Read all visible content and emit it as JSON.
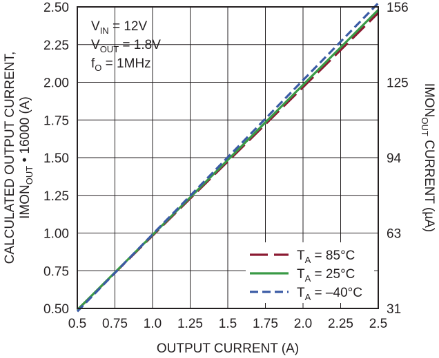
{
  "chart_data": {
    "type": "line",
    "x": [
      0.5,
      2.5
    ],
    "xlim": [
      0.5,
      2.5
    ],
    "ylim": [
      0.5,
      2.5
    ],
    "xticks": [
      "0.5",
      "0.75",
      "1.0",
      "1.25",
      "1.5",
      "1.75",
      "2.0",
      "2.25",
      "2.5"
    ],
    "yticks": [
      "0.50",
      "0.75",
      "1.00",
      "1.25",
      "1.50",
      "1.75",
      "2.00",
      "2.25",
      "2.50"
    ],
    "y2ticks": [
      "31",
      "63",
      "94",
      "125",
      "156"
    ],
    "y2_ticks_at_y": [
      0.5,
      1.0,
      1.5,
      2.0,
      2.5
    ],
    "grid": true,
    "xlabel": "OUTPUT CURRENT (A)",
    "ylabel": {
      "line1": "CALCULATED OUTPUT CURRENT,",
      "line2_main": "IMON",
      "line2_sub": "OUT",
      "line2_rest": " • 16000 (A)"
    },
    "y2label": {
      "main": "IMON",
      "sub": "OUT",
      "rest": " CURRENT (µA)"
    },
    "annotation": [
      {
        "main": "V",
        "sub": "IN",
        "rest": " = 12V"
      },
      {
        "main": "V",
        "sub": "OUT",
        "rest": " = 1.8V"
      },
      {
        "main": "f",
        "sub": "O",
        "rest": " = 1MHz"
      }
    ],
    "legend_position": "bottom-right",
    "series": [
      {
        "name_main": "T",
        "name_sub": "A",
        "name_rest": " = 85°C",
        "values": [
          0.49,
          2.46
        ],
        "color": "#8b1a32",
        "dash": "long-dash"
      },
      {
        "name_main": "T",
        "name_sub": "A",
        "name_rest": " = 25°C",
        "values": [
          0.49,
          2.48
        ],
        "color": "#3a9a46",
        "dash": "solid"
      },
      {
        "name_main": "T",
        "name_sub": "A",
        "name_rest": " = –40°C",
        "values": [
          0.48,
          2.525
        ],
        "color": "#3b5ba5",
        "dash": "short-dash"
      }
    ]
  }
}
